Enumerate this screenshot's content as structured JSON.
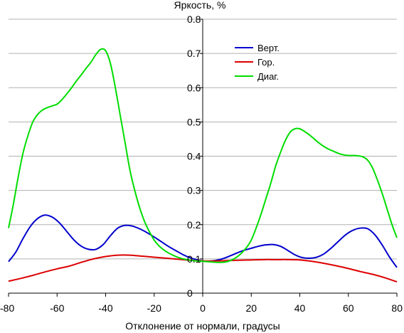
{
  "chart_data": {
    "type": "line",
    "title": "",
    "ylabel": "Яркость, %",
    "xlabel": "Отклонение от нормали, градусы",
    "xlim": [
      -80,
      80
    ],
    "ylim": [
      0,
      0.8
    ],
    "xticks": [
      -80,
      -60,
      -40,
      -20,
      0,
      20,
      40,
      60,
      80
    ],
    "xtick_labels": [
      "-80",
      "-60",
      "-40",
      "-20",
      "0",
      "20",
      "40",
      "60",
      "80"
    ],
    "yticks": [
      0,
      0.1,
      0.2,
      0.3,
      0.4,
      0.5,
      0.6,
      0.7,
      0.8
    ],
    "ytick_labels": [
      "0",
      "0.1",
      "0.2",
      "0.3",
      "0.4",
      "0.5",
      "0.6",
      "0.7",
      "0.8"
    ],
    "grid": "horizontal",
    "legend_position": "top-right",
    "series": [
      {
        "name": "Верт.",
        "color": "#0000cc",
        "x": [
          -80,
          -77,
          -74,
          -71,
          -68,
          -65,
          -62,
          -59,
          -56,
          -53,
          -50,
          -47,
          -44,
          -41,
          -38,
          -35,
          -32,
          -29,
          -26,
          -23,
          -20,
          -17,
          -14,
          -11,
          -8,
          -5,
          -2,
          0,
          2,
          5,
          8,
          11,
          14,
          17,
          20,
          23,
          26,
          29,
          32,
          35,
          38,
          41,
          44,
          47,
          50,
          53,
          56,
          59,
          62,
          65,
          68,
          71,
          74,
          77,
          80
        ],
        "y": [
          0.092,
          0.12,
          0.16,
          0.195,
          0.218,
          0.228,
          0.222,
          0.205,
          0.18,
          0.155,
          0.137,
          0.128,
          0.128,
          0.142,
          0.168,
          0.19,
          0.198,
          0.196,
          0.188,
          0.177,
          0.164,
          0.15,
          0.136,
          0.124,
          0.112,
          0.103,
          0.097,
          0.094,
          0.093,
          0.095,
          0.1,
          0.108,
          0.117,
          0.125,
          0.131,
          0.137,
          0.141,
          0.142,
          0.137,
          0.125,
          0.112,
          0.104,
          0.102,
          0.105,
          0.115,
          0.132,
          0.152,
          0.171,
          0.184,
          0.19,
          0.188,
          0.17,
          0.14,
          0.105,
          0.075
        ]
      },
      {
        "name": "Гор.",
        "color": "#dd0000",
        "x": [
          -80,
          -75,
          -70,
          -65,
          -60,
          -55,
          -50,
          -45,
          -40,
          -35,
          -30,
          -25,
          -20,
          -15,
          -10,
          -5,
          0,
          5,
          10,
          15,
          20,
          25,
          30,
          35,
          40,
          45,
          50,
          55,
          60,
          65,
          70,
          75,
          80
        ],
        "y": [
          0.035,
          0.043,
          0.052,
          0.062,
          0.071,
          0.079,
          0.09,
          0.1,
          0.107,
          0.111,
          0.111,
          0.108,
          0.105,
          0.102,
          0.099,
          0.096,
          0.094,
          0.094,
          0.095,
          0.096,
          0.097,
          0.098,
          0.098,
          0.098,
          0.097,
          0.093,
          0.087,
          0.08,
          0.072,
          0.063,
          0.055,
          0.045,
          0.033
        ]
      },
      {
        "name": "Диаг.",
        "color": "#00dd00",
        "x": [
          -80,
          -78,
          -76,
          -74,
          -72,
          -70,
          -68,
          -66,
          -64,
          -62,
          -60,
          -58,
          -56,
          -54,
          -52,
          -50,
          -48,
          -46,
          -44,
          -42,
          -40,
          -38,
          -36,
          -34,
          -32,
          -30,
          -28,
          -26,
          -24,
          -22,
          -20,
          -18,
          -16,
          -14,
          -12,
          -10,
          -8,
          -6,
          -4,
          -2,
          0,
          2,
          4,
          6,
          8,
          10,
          12,
          14,
          16,
          18,
          20,
          22,
          24,
          26,
          28,
          30,
          32,
          34,
          36,
          38,
          40,
          42,
          44,
          46,
          48,
          50,
          52,
          54,
          56,
          58,
          60,
          62,
          64,
          66,
          68,
          70,
          72,
          74,
          76,
          78,
          80
        ],
        "y": [
          0.19,
          0.26,
          0.34,
          0.41,
          0.46,
          0.5,
          0.522,
          0.535,
          0.542,
          0.547,
          0.552,
          0.565,
          0.582,
          0.6,
          0.62,
          0.638,
          0.657,
          0.675,
          0.697,
          0.712,
          0.708,
          0.67,
          0.6,
          0.52,
          0.44,
          0.36,
          0.3,
          0.25,
          0.21,
          0.18,
          0.155,
          0.138,
          0.126,
          0.117,
          0.11,
          0.104,
          0.1,
          0.097,
          0.095,
          0.094,
          0.093,
          0.092,
          0.091,
          0.09,
          0.09,
          0.092,
          0.097,
          0.105,
          0.117,
          0.133,
          0.155,
          0.19,
          0.23,
          0.275,
          0.32,
          0.37,
          0.41,
          0.445,
          0.47,
          0.48,
          0.48,
          0.472,
          0.462,
          0.45,
          0.438,
          0.428,
          0.42,
          0.414,
          0.408,
          0.404,
          0.402,
          0.402,
          0.401,
          0.398,
          0.388,
          0.365,
          0.33,
          0.29,
          0.245,
          0.2,
          0.162
        ]
      }
    ]
  }
}
